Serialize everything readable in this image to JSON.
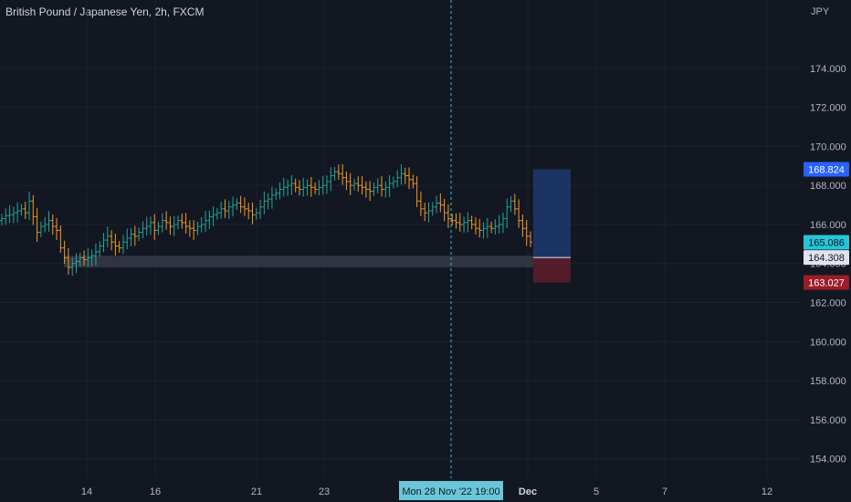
{
  "header": {
    "title": "British Pound / Japanese Yen, 2h, FXCM"
  },
  "chart_data": {
    "type": "ohlc",
    "currency": "JPY",
    "ylim": [
      153.0,
      177.5
    ],
    "y_ticks": [
      "174.000",
      "172.000",
      "170.000",
      "168.000",
      "166.000",
      "164.000",
      "162.000",
      "160.000",
      "158.000",
      "156.000",
      "154.000"
    ],
    "y_tick_values": [
      174,
      172,
      170,
      168,
      166,
      164,
      162,
      160,
      158,
      156,
      154
    ],
    "x_tick_labels": [
      "14",
      "16",
      "21",
      "23",
      "Dec",
      "5",
      "7",
      "12"
    ],
    "crosshair_label": "Mon 28 Nov '22   19:00",
    "price_badges": [
      {
        "label": "168.824",
        "value": 168.824,
        "color": "#2962ff"
      },
      {
        "label": "165.086",
        "value": 165.086,
        "color": "#26c6da"
      },
      {
        "label": "164.308",
        "value": 164.308,
        "color": "#e0e3eb"
      },
      {
        "label": "163.027",
        "value": 163.027,
        "color": "#9b1d27"
      }
    ],
    "colors": {
      "up": "#26a69a",
      "down": "#f59a23",
      "background": "#131722",
      "grid": "#1e222d"
    },
    "position_tool": {
      "entry": 164.308,
      "target": 168.824,
      "stop": 163.027,
      "zone_top": 164.4,
      "zone_bottom": 163.8
    },
    "closes": [
      166.3,
      166.45,
      166.5,
      166.6,
      166.7,
      166.8,
      166.6,
      167.2,
      166.4,
      165.6,
      165.9,
      166.0,
      166.2,
      165.9,
      165.7,
      164.8,
      164.3,
      163.8,
      164.0,
      164.1,
      164.3,
      164.2,
      164.3,
      164.4,
      164.6,
      164.9,
      165.2,
      165.4,
      165.1,
      164.9,
      164.8,
      165.1,
      165.3,
      165.5,
      165.4,
      165.6,
      165.8,
      165.9,
      166.1,
      165.7,
      165.9,
      166.2,
      166.1,
      165.9,
      166.0,
      166.2,
      166.1,
      165.9,
      165.8,
      165.7,
      165.9,
      166.0,
      166.2,
      166.4,
      166.5,
      166.6,
      166.8,
      166.7,
      166.9,
      167.0,
      167.1,
      166.9,
      166.8,
      166.7,
      166.5,
      166.6,
      166.9,
      167.2,
      167.3,
      167.5,
      167.6,
      167.8,
      167.9,
      168.0,
      168.1,
      167.9,
      167.8,
      167.9,
      168.0,
      167.9,
      167.8,
      167.9,
      168.0,
      168.2,
      168.5,
      168.7,
      168.6,
      168.4,
      168.2,
      168.0,
      168.1,
      168.0,
      167.9,
      167.8,
      167.7,
      167.9,
      168.0,
      167.8,
      167.9,
      168.1,
      168.2,
      168.4,
      168.6,
      168.5,
      168.3,
      168.1,
      167.2,
      166.8,
      166.6,
      166.7,
      166.9,
      167.1,
      167.0,
      166.6,
      166.3,
      166.2,
      166.1,
      166.0,
      166.1,
      166.2,
      166.0,
      165.8,
      165.7,
      165.8,
      165.9,
      165.8,
      165.9,
      166.0,
      166.3,
      166.9,
      167.2,
      166.8,
      166.2,
      165.8,
      165.4,
      165.1
    ]
  }
}
